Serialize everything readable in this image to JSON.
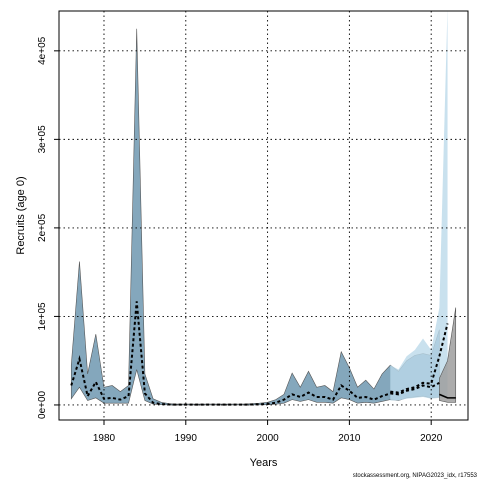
{
  "chart_data": {
    "type": "area",
    "title": "",
    "xlabel": "Years",
    "ylabel": "Recruits (age 0)",
    "xlim": [
      1974.5,
      2024.5
    ],
    "ylim": [
      -17000,
      445000
    ],
    "x_ticks": [
      1980,
      1990,
      2000,
      2010,
      2020
    ],
    "y_ticks": [
      0,
      100000,
      200000,
      300000,
      400000
    ],
    "y_tick_labels": [
      "0e+00",
      "1e+05",
      "2e+05",
      "3e+05",
      "4e+05"
    ],
    "grid": true,
    "legend": "none",
    "colors": {
      "model_band": "#6f98b0",
      "projection_band": "#bcd9ea",
      "forecast_band": "#9e9e9e",
      "median_line": "#000000"
    },
    "series": [
      {
        "x": [
          1976,
          1977,
          1978,
          1979,
          1980,
          1981,
          1982,
          1983,
          1984,
          1985,
          1986,
          1987,
          1988,
          1989,
          1990,
          1991,
          1992,
          1993,
          1994,
          1995,
          1996,
          1997,
          1998,
          1999,
          2000,
          2001,
          2002,
          2003,
          2004,
          2005,
          2006,
          2007,
          2008,
          2009,
          2010,
          2011,
          2012,
          2013,
          2014,
          2015,
          2016,
          2017,
          2018,
          2019,
          2020,
          2021
        ],
        "upper": [
          45000,
          162000,
          35000,
          80000,
          20000,
          22000,
          15000,
          22000,
          425000,
          35000,
          7000,
          3000,
          1500,
          1000,
          1000,
          1000,
          1000,
          1000,
          1000,
          1000,
          1000,
          1000,
          1500,
          2000,
          3000,
          6000,
          12000,
          36000,
          20000,
          38000,
          20000,
          22000,
          15000,
          60000,
          42000,
          20000,
          28000,
          18000,
          35000,
          45000,
          38000,
          50000,
          56000,
          58000,
          56000,
          85000
        ],
        "median": [
          22000,
          52000,
          10000,
          26000,
          7000,
          8000,
          6000,
          10000,
          117000,
          13000,
          2500,
          1000,
          500,
          300,
          300,
          300,
          300,
          300,
          300,
          300,
          300,
          300,
          500,
          700,
          1200,
          2500,
          6000,
          12000,
          9000,
          14000,
          9000,
          9000,
          6000,
          22000,
          16000,
          8000,
          9000,
          6000,
          10000,
          13000,
          12000,
          16000,
          18000,
          22000,
          20000,
          25000
        ],
        "lower": [
          7000,
          20000,
          5000,
          8000,
          2000,
          2000,
          2000,
          2000,
          40000,
          5000,
          1000,
          300,
          100,
          50,
          50,
          50,
          50,
          50,
          50,
          50,
          50,
          50,
          100,
          200,
          300,
          800,
          2000,
          6000,
          4000,
          6000,
          3000,
          3000,
          2000,
          8000,
          6000,
          2000,
          3000,
          2000,
          4000,
          6000,
          5000,
          8000,
          9000,
          10000,
          8000,
          9000
        ]
      },
      {
        "x": [
          2015,
          2016,
          2017,
          2018,
          2019,
          2020,
          2021,
          2022
        ],
        "upper": [
          45000,
          40000,
          55000,
          62000,
          75000,
          62000,
          110000,
          450000
        ],
        "median": [
          15000,
          14000,
          18000,
          20000,
          25000,
          24000,
          55000,
          92000
        ],
        "lower": [
          5000,
          5000,
          7000,
          8000,
          9000,
          7000,
          8000,
          9000
        ]
      },
      {
        "x": [
          2021,
          2022,
          2023
        ],
        "upper": [
          30000,
          50000,
          110000
        ],
        "median": [
          12000,
          8000,
          8000
        ],
        "lower": [
          5000,
          3000,
          3000
        ]
      }
    ],
    "annotations": [
      "stockassessment.org, NIPAG2023_idx, r17553"
    ]
  }
}
